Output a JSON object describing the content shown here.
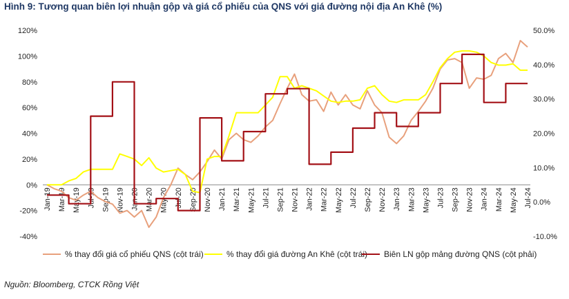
{
  "chart_data": {
    "type": "line",
    "title": "Hình 9: Tương quan biên lợi nhuận gộp và giá cổ phiếu của QNS với giá đường nội địa An Khê (%)",
    "source": "Nguồn: Bloomberg, CTCK Rồng Việt",
    "x": [
      "Jan-19",
      "Feb-19",
      "Mar-19",
      "Apr-19",
      "May-19",
      "Jun-19",
      "Jul-19",
      "Aug-19",
      "Sep-19",
      "Oct-19",
      "Nov-19",
      "Dec-19",
      "Jan-20",
      "Feb-20",
      "Mar-20",
      "Apr-20",
      "May-20",
      "Jun-20",
      "Jul-20",
      "Aug-20",
      "Sep-20",
      "Oct-20",
      "Nov-20",
      "Dec-20",
      "Jan-21",
      "Feb-21",
      "Mar-21",
      "Apr-21",
      "May-21",
      "Jun-21",
      "Jul-21",
      "Aug-21",
      "Sep-21",
      "Oct-21",
      "Nov-21",
      "Dec-21",
      "Jan-22",
      "Feb-22",
      "Mar-22",
      "Apr-22",
      "May-22",
      "Jun-22",
      "Jul-22",
      "Aug-22",
      "Sep-22",
      "Oct-22",
      "Nov-22",
      "Dec-22",
      "Jan-23",
      "Feb-23",
      "Mar-23",
      "Apr-23",
      "May-23",
      "Jun-23",
      "Jul-23",
      "Aug-23",
      "Sep-23",
      "Oct-23",
      "Nov-23",
      "Dec-23",
      "Jan-24",
      "Feb-24",
      "Mar-24",
      "Apr-24",
      "May-24",
      "Jun-24",
      "Jul-24"
    ],
    "x_tick_labels": [
      "Jan-19",
      "Mar-19",
      "May-19",
      "Jul-19",
      "Sep-19",
      "Nov-19",
      "Jan-20",
      "Mar-20",
      "May-20",
      "Jul-20",
      "Sep-20",
      "Nov-20",
      "Jan-21",
      "Mar-21",
      "May-21",
      "Jul-21",
      "Sep-21",
      "Nov-21",
      "Jan-22",
      "Mar-22",
      "May-22",
      "Jul-22",
      "Sep-22",
      "Nov-22",
      "Jan-23",
      "Mar-23",
      "May-23",
      "Jul-23",
      "Sep-23",
      "Nov-23",
      "Jan-24",
      "Mar-24",
      "May-24",
      "Jul-24"
    ],
    "y_left": {
      "ticks": [
        "-40%",
        "-20%",
        "0%",
        "20%",
        "40%",
        "60%",
        "80%",
        "100%",
        "120%"
      ],
      "ylim": [
        -40,
        120
      ]
    },
    "y_right": {
      "ticks": [
        "-10.0%",
        "0.0%",
        "10.0%",
        "20.0%",
        "30.0%",
        "40.0%",
        "50.0%"
      ],
      "ylim": [
        -10,
        50
      ]
    },
    "series": [
      {
        "name": "% thay đổi giá cổ phiếu QNS (cột trái)",
        "axis": "left",
        "color": "#e8a07c",
        "values": [
          0,
          -3,
          -5,
          -10,
          -12,
          -8,
          -5,
          -10,
          -13,
          -15,
          -22,
          -20,
          -25,
          -20,
          -33,
          -25,
          -10,
          0,
          13,
          8,
          4,
          10,
          18,
          27,
          20,
          35,
          40,
          35,
          33,
          38,
          45,
          50,
          63,
          75,
          86,
          70,
          65,
          66,
          57,
          72,
          62,
          70,
          62,
          59,
          73,
          62,
          56,
          37,
          32,
          38,
          50,
          57,
          65,
          75,
          90,
          97,
          98,
          95,
          75,
          83,
          82,
          85,
          98,
          102,
          95,
          112,
          107
        ]
      },
      {
        "name": "% thay đổi giá đường An Khê (cột trái)",
        "axis": "left",
        "color": "#ffff00",
        "values": [
          0,
          0,
          0,
          3,
          5,
          10,
          12,
          12,
          12,
          12,
          24,
          22,
          20,
          15,
          21,
          13,
          10,
          11,
          12,
          8,
          -5,
          -6,
          20,
          22,
          22,
          38,
          56,
          56,
          56,
          56,
          62,
          68,
          84,
          84,
          75,
          77,
          75,
          73,
          69,
          65,
          64,
          65,
          65,
          66,
          75,
          77,
          70,
          65,
          64,
          66,
          66,
          66,
          70,
          80,
          91,
          98,
          103,
          104,
          104,
          103,
          100,
          95,
          93,
          93,
          94,
          89,
          89
        ]
      },
      {
        "name": "Biên LN gộp mảng đường QNS (cột phải)",
        "axis": "right",
        "color": "#a31016",
        "step": true,
        "values": [
          2,
          2,
          2,
          -0.5,
          -0.5,
          -0.5,
          25,
          25,
          25,
          35,
          35,
          35,
          -0.5,
          -0.5,
          -0.5,
          1,
          1,
          1,
          -2.5,
          -2.5,
          -2.5,
          24.5,
          24.5,
          24.5,
          12,
          12,
          12,
          20.5,
          20.5,
          20.5,
          31.5,
          31.5,
          31.5,
          33,
          33,
          33,
          11,
          11,
          11,
          14.5,
          14.5,
          14.5,
          21.5,
          21.5,
          21.5,
          26,
          26,
          26,
          22,
          22,
          22,
          26,
          26,
          26,
          34.5,
          34.5,
          34.5,
          43,
          43,
          43,
          29,
          29,
          29,
          34.5,
          34.5,
          34.5,
          34.5
        ]
      }
    ]
  }
}
